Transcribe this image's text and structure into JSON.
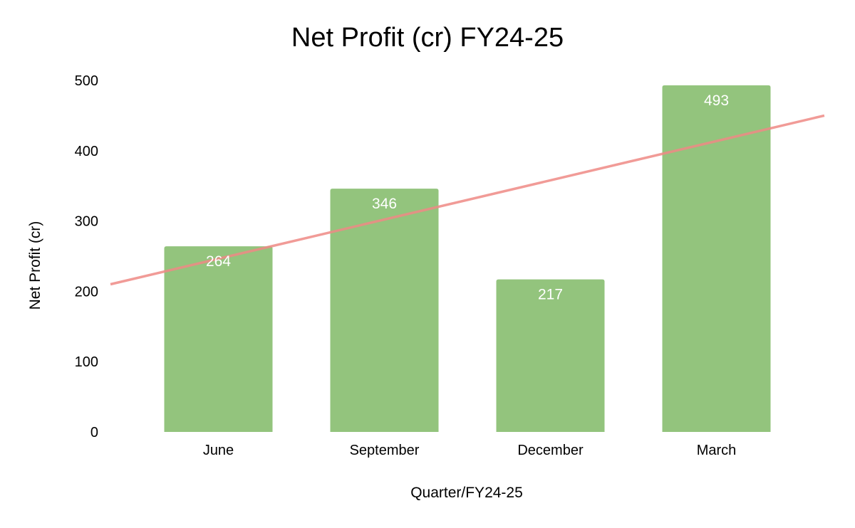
{
  "chart_data": {
    "type": "bar",
    "title": "Net Profit (cr) FY24-25",
    "xlabel": "Quarter/FY24-25",
    "ylabel": "Net Profit (cr)",
    "categories": [
      "June",
      "September",
      "December",
      "March"
    ],
    "values": [
      264,
      346,
      217,
      493
    ],
    "data_labels": [
      "264",
      "346",
      "217",
      "493"
    ],
    "ylim": [
      0,
      500
    ],
    "yticks": [
      0,
      100,
      200,
      300,
      400,
      500
    ],
    "ytick_labels": [
      "0",
      "100",
      "200",
      "300",
      "400",
      "500"
    ],
    "grid": false,
    "legend": "none",
    "trendline": {
      "type": "linear",
      "color": "#ef8a85"
    },
    "colors": {
      "bar": "#93c47d",
      "label": "#ffffff"
    }
  }
}
